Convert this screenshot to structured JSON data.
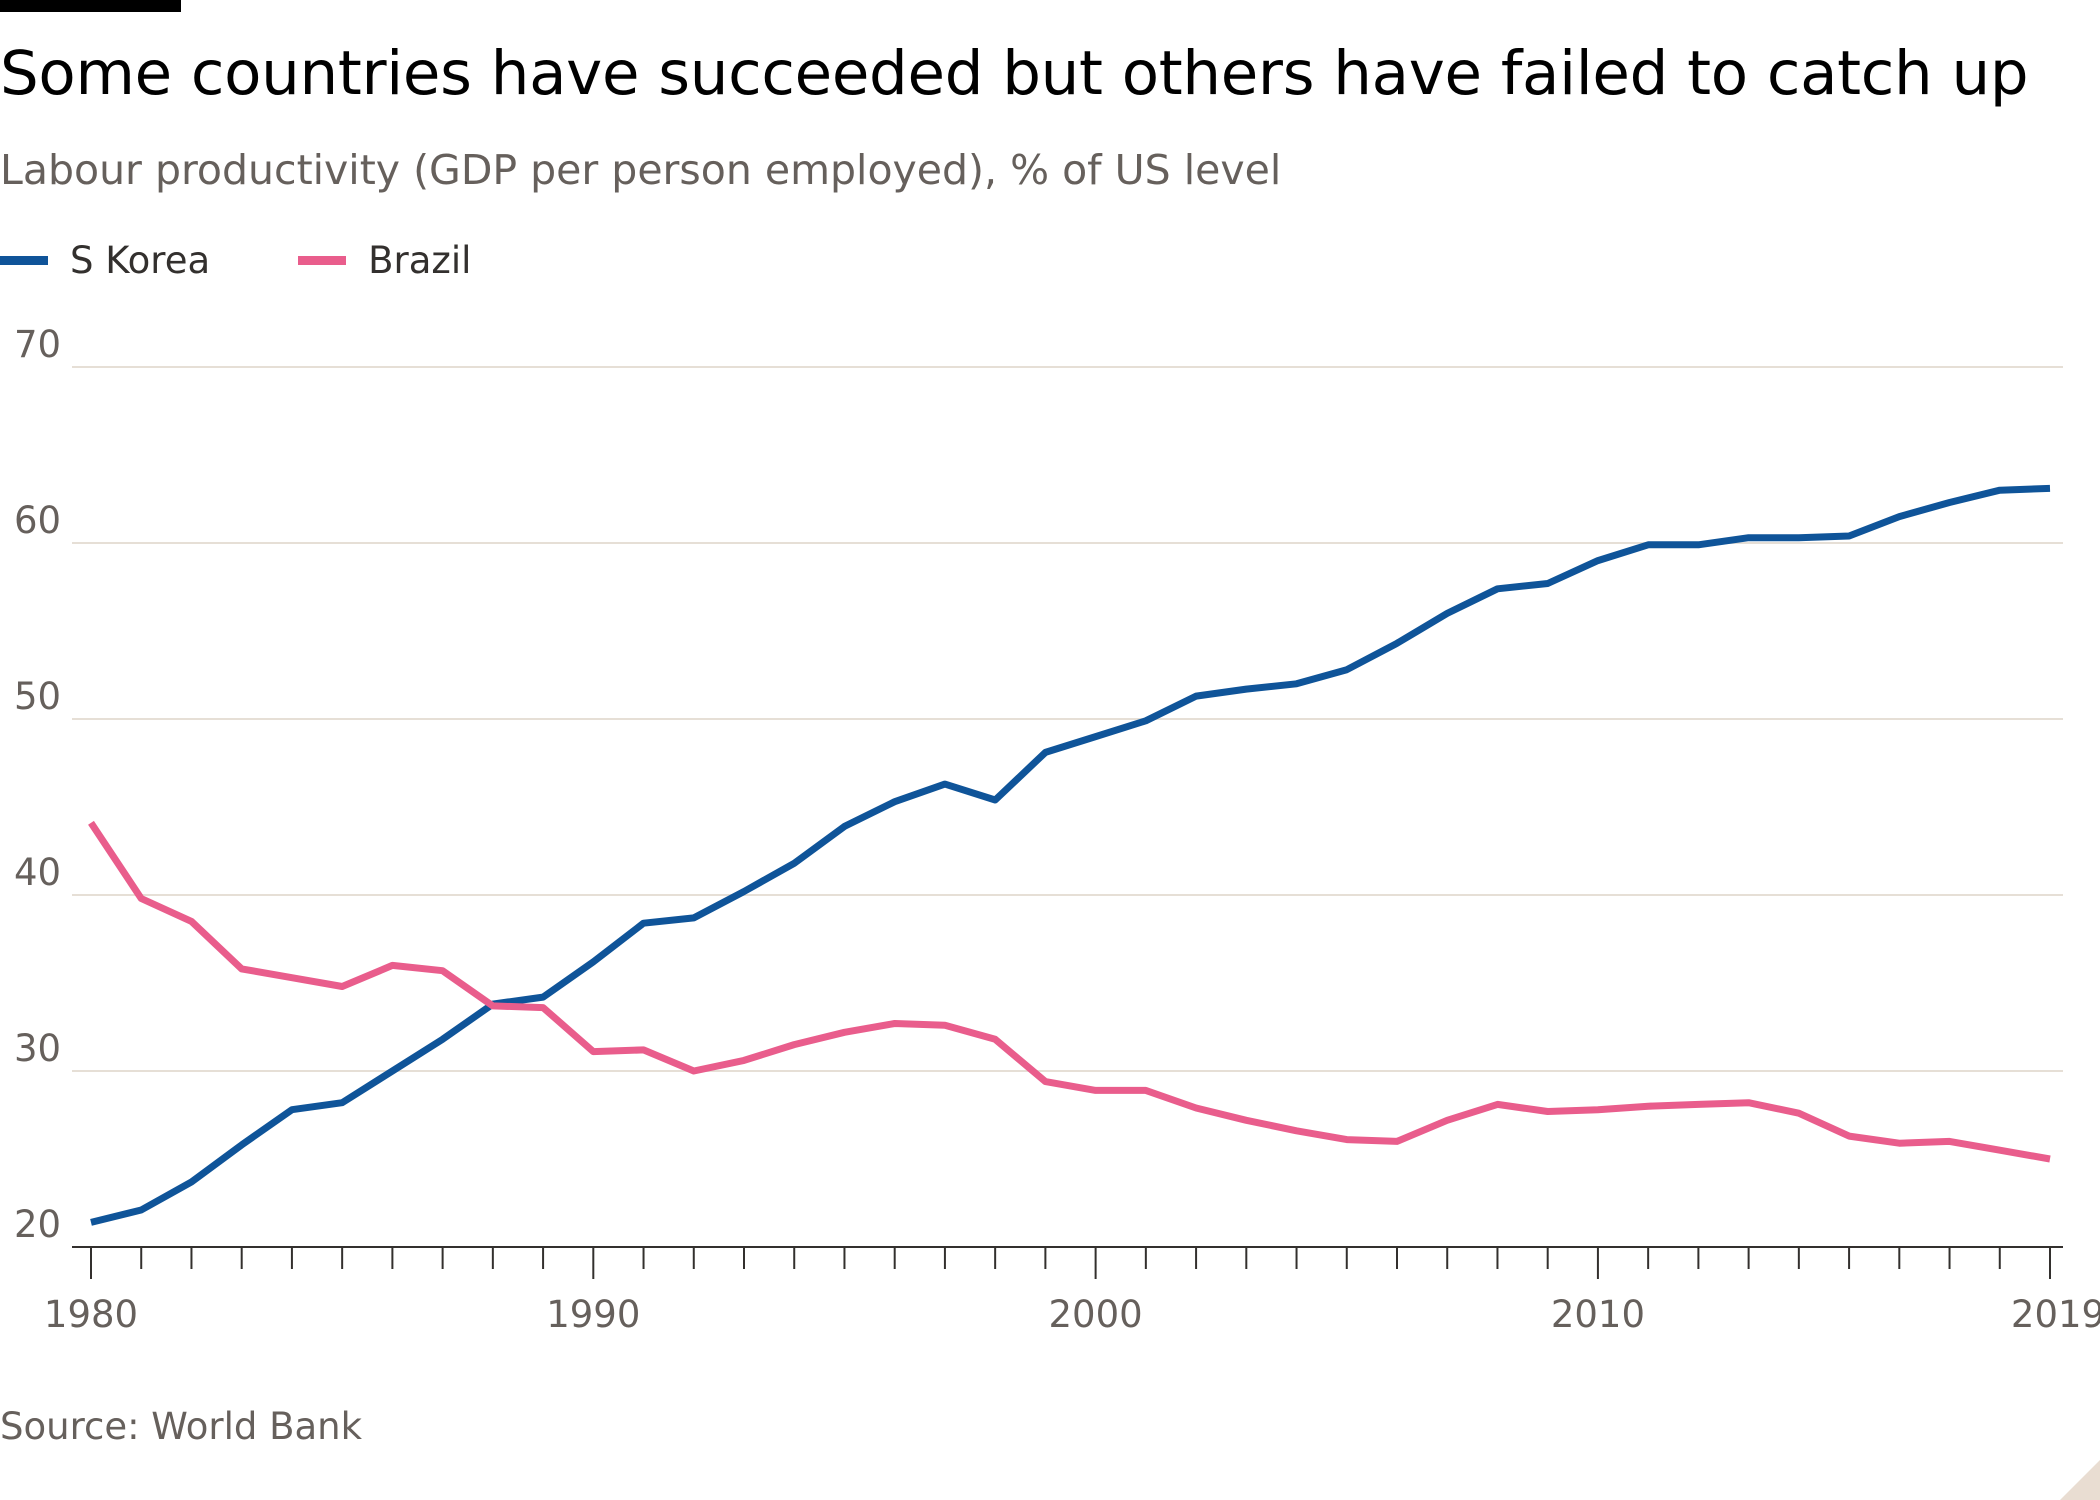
{
  "title": "Some countries have succeeded but others have failed to catch up",
  "subtitle": "Labour productivity (GDP per person employed), % of US level",
  "source": "Source: World Bank",
  "colors": {
    "s_korea": "#0f5499",
    "brazil": "#e95d8c",
    "grid": "#e6dfd6",
    "tick_text": "#66605c",
    "axis": "#33302e"
  },
  "chart_data": {
    "type": "line",
    "ylim": [
      20,
      70
    ],
    "xlim": [
      1980,
      2019
    ],
    "y_ticks": [
      20,
      30,
      40,
      50,
      60,
      70
    ],
    "x_tick_labels": [
      1980,
      1990,
      2000,
      2010,
      2019
    ],
    "grid": true,
    "legend": "top-left",
    "x": [
      1980,
      1981,
      1982,
      1983,
      1984,
      1985,
      1986,
      1987,
      1988,
      1989,
      1990,
      1991,
      1992,
      1993,
      1994,
      1995,
      1996,
      1997,
      1998,
      1999,
      2000,
      2001,
      2002,
      2003,
      2004,
      2005,
      2006,
      2007,
      2008,
      2009,
      2010,
      2011,
      2012,
      2013,
      2014,
      2015,
      2016,
      2017,
      2018,
      2019
    ],
    "series": [
      {
        "name": "S Korea",
        "color": "#0f5499",
        "values": [
          21.4,
          22.1,
          23.7,
          25.8,
          27.8,
          28.2,
          30.0,
          31.8,
          33.8,
          34.2,
          36.2,
          38.4,
          38.7,
          40.2,
          41.8,
          43.9,
          45.3,
          46.3,
          45.4,
          48.1,
          49.0,
          49.9,
          51.3,
          51.7,
          52.0,
          52.8,
          54.3,
          56.0,
          57.4,
          57.7,
          59.0,
          59.9,
          59.9,
          60.3,
          60.3,
          60.4,
          61.5,
          62.3,
          63.0,
          63.1
        ]
      },
      {
        "name": "Brazil",
        "color": "#e95d8c",
        "values": [
          44.1,
          39.8,
          38.5,
          35.8,
          35.3,
          34.8,
          36.0,
          35.7,
          33.7,
          33.6,
          31.1,
          31.2,
          30.0,
          30.6,
          31.5,
          32.2,
          32.7,
          32.6,
          31.8,
          29.4,
          28.9,
          28.9,
          27.9,
          27.2,
          26.6,
          26.1,
          26.0,
          27.2,
          28.1,
          27.7,
          27.8,
          28.0,
          28.1,
          28.2,
          27.6,
          26.3,
          25.9,
          26.0,
          25.5,
          25.0
        ]
      }
    ]
  }
}
